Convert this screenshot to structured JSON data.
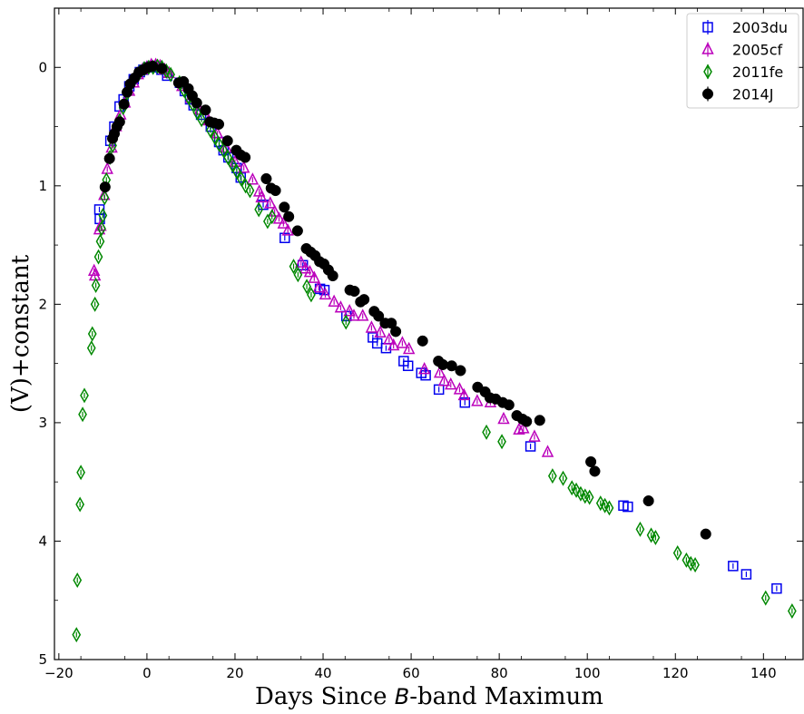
{
  "chart_data": {
    "type": "scatter",
    "xlabel_pre": "Days Since ",
    "xlabel_em": "B",
    "xlabel_post": "-band Maximum",
    "ylabel": "(V)+constant",
    "xlim": [
      -21,
      149
    ],
    "ylim": [
      5,
      -0.5
    ],
    "y_inverted": true,
    "x_ticks": [
      -20,
      0,
      20,
      40,
      60,
      80,
      100,
      120,
      140
    ],
    "x_tick_labels": [
      "−20",
      "0",
      "20",
      "40",
      "60",
      "80",
      "100",
      "120",
      "140"
    ],
    "y_ticks": [
      0,
      1,
      2,
      3,
      4,
      5
    ],
    "y_tick_labels": [
      "0",
      "1",
      "2",
      "3",
      "4",
      "5"
    ],
    "grid": false,
    "legend_position": "top-right",
    "series": [
      {
        "name": "2003du",
        "marker": "square",
        "color": "#0000ee",
        "points": [
          [
            -10.8,
            1.2
          ],
          [
            -10.7,
            1.28
          ],
          [
            -8.3,
            0.62
          ],
          [
            -7.4,
            0.5
          ],
          [
            -6.2,
            0.33
          ],
          [
            -5.3,
            0.27
          ],
          [
            -4.0,
            0.16
          ],
          [
            -3.0,
            0.1
          ],
          [
            -1.6,
            0.04
          ],
          [
            -0.8,
            0.02
          ],
          [
            0.3,
            0.0
          ],
          [
            1.2,
            -0.01
          ],
          [
            2.4,
            0.0
          ],
          [
            3.3,
            0.02
          ],
          [
            4.6,
            0.07
          ],
          [
            7.5,
            0.13
          ],
          [
            8.6,
            0.2
          ],
          [
            9.8,
            0.27
          ],
          [
            10.6,
            0.32
          ],
          [
            12.3,
            0.4
          ],
          [
            14.5,
            0.5
          ],
          [
            16.4,
            0.63
          ],
          [
            17.4,
            0.7
          ],
          [
            18.5,
            0.76
          ],
          [
            20.4,
            0.85
          ],
          [
            21.3,
            0.93
          ],
          [
            26.4,
            1.16
          ],
          [
            31.3,
            1.44
          ],
          [
            35.4,
            1.67
          ],
          [
            39.3,
            1.87
          ],
          [
            40.3,
            1.88
          ],
          [
            45.3,
            2.1
          ],
          [
            51.3,
            2.28
          ],
          [
            52.3,
            2.33
          ],
          [
            54.3,
            2.37
          ],
          [
            58.3,
            2.48
          ],
          [
            59.3,
            2.52
          ],
          [
            62.3,
            2.58
          ],
          [
            63.3,
            2.6
          ],
          [
            66.3,
            2.72
          ],
          [
            72.2,
            2.83
          ],
          [
            87.1,
            3.2
          ],
          [
            108.2,
            3.7
          ],
          [
            109.2,
            3.71
          ],
          [
            133.1,
            4.21
          ],
          [
            136.1,
            4.28
          ],
          [
            143.0,
            4.4
          ]
        ],
        "error": [
          [
            39.3,
            0.1
          ],
          [
            89.0,
            0.08
          ]
        ]
      },
      {
        "name": "2005cf",
        "marker": "triangle",
        "color": "#bb00bb",
        "points": [
          [
            -12.0,
            1.72
          ],
          [
            -11.8,
            1.76
          ],
          [
            -10.8,
            1.37
          ],
          [
            -10.5,
            1.34
          ],
          [
            -9.7,
            1.08
          ],
          [
            -9.0,
            0.86
          ],
          [
            -8.0,
            0.68
          ],
          [
            -7.0,
            0.5
          ],
          [
            -6.0,
            0.4
          ],
          [
            -5.0,
            0.3
          ],
          [
            -4.0,
            0.2
          ],
          [
            -3.0,
            0.13
          ],
          [
            -2.0,
            0.06
          ],
          [
            -1.0,
            0.02
          ],
          [
            0.0,
            0.0
          ],
          [
            1.0,
            -0.02
          ],
          [
            2.0,
            -0.02
          ],
          [
            3.0,
            -0.01
          ],
          [
            4.0,
            0.02
          ],
          [
            5.0,
            0.05
          ],
          [
            8.0,
            0.16
          ],
          [
            10.0,
            0.26
          ],
          [
            12.0,
            0.36
          ],
          [
            14.0,
            0.45
          ],
          [
            16.0,
            0.56
          ],
          [
            18.0,
            0.68
          ],
          [
            20.0,
            0.8
          ],
          [
            22.0,
            0.85
          ],
          [
            24.0,
            0.95
          ],
          [
            25.5,
            1.05
          ],
          [
            26.0,
            1.1
          ],
          [
            28.0,
            1.15
          ],
          [
            29.0,
            1.22
          ],
          [
            30.0,
            1.28
          ],
          [
            31.0,
            1.32
          ],
          [
            32.0,
            1.38
          ],
          [
            35.0,
            1.65
          ],
          [
            36.0,
            1.7
          ],
          [
            37.0,
            1.73
          ],
          [
            38.0,
            1.78
          ],
          [
            39.0,
            1.86
          ],
          [
            40.5,
            1.92
          ],
          [
            42.5,
            1.98
          ],
          [
            44.0,
            2.03
          ],
          [
            46.0,
            2.06
          ],
          [
            47.0,
            2.1
          ],
          [
            49.0,
            2.1
          ],
          [
            51.0,
            2.2
          ],
          [
            53.0,
            2.24
          ],
          [
            55.0,
            2.3
          ],
          [
            56.0,
            2.35
          ],
          [
            58.0,
            2.33
          ],
          [
            59.5,
            2.38
          ],
          [
            63.0,
            2.55
          ],
          [
            66.5,
            2.58
          ],
          [
            67.5,
            2.65
          ],
          [
            69.0,
            2.68
          ],
          [
            71.0,
            2.72
          ],
          [
            72.0,
            2.77
          ],
          [
            75.0,
            2.82
          ],
          [
            78.0,
            2.83
          ],
          [
            81.0,
            2.97
          ],
          [
            84.5,
            3.06
          ],
          [
            85.5,
            3.05
          ],
          [
            88.0,
            3.12
          ],
          [
            91.0,
            3.25
          ]
        ]
      },
      {
        "name": "2011fe",
        "marker": "diamond",
        "color": "#008800",
        "points": [
          [
            -16.0,
            4.79
          ],
          [
            -15.8,
            4.33
          ],
          [
            -15.2,
            3.69
          ],
          [
            -15.0,
            3.42
          ],
          [
            -14.6,
            2.93
          ],
          [
            -14.2,
            2.77
          ],
          [
            -12.6,
            2.37
          ],
          [
            -12.4,
            2.25
          ],
          [
            -11.8,
            2.0
          ],
          [
            -11.6,
            1.84
          ],
          [
            -11.0,
            1.6
          ],
          [
            -10.6,
            1.47
          ],
          [
            -10.3,
            1.36
          ],
          [
            -10.0,
            1.25
          ],
          [
            -9.6,
            1.1
          ],
          [
            -9.2,
            0.95
          ],
          [
            -8.4,
            0.76
          ],
          [
            -7.8,
            0.66
          ],
          [
            -7.2,
            0.56
          ],
          [
            -6.2,
            0.45
          ],
          [
            -5.4,
            0.34
          ],
          [
            -4.5,
            0.22
          ],
          [
            -3.6,
            0.14
          ],
          [
            -2.6,
            0.08
          ],
          [
            -1.6,
            0.04
          ],
          [
            -0.6,
            0.01
          ],
          [
            0.4,
            0.0
          ],
          [
            1.4,
            0.0
          ],
          [
            2.4,
            -0.01
          ],
          [
            3.4,
            0.0
          ],
          [
            4.4,
            0.03
          ],
          [
            5.4,
            0.06
          ],
          [
            7.4,
            0.13
          ],
          [
            8.4,
            0.19
          ],
          [
            9.4,
            0.25
          ],
          [
            10.4,
            0.31
          ],
          [
            11.4,
            0.38
          ],
          [
            12.4,
            0.44
          ],
          [
            14.4,
            0.53
          ],
          [
            15.4,
            0.59
          ],
          [
            16.4,
            0.65
          ],
          [
            17.4,
            0.7
          ],
          [
            18.4,
            0.76
          ],
          [
            19.4,
            0.82
          ],
          [
            20.4,
            0.88
          ],
          [
            21.4,
            0.94
          ],
          [
            22.4,
            1.0
          ],
          [
            23.4,
            1.04
          ],
          [
            25.4,
            1.2
          ],
          [
            27.4,
            1.3
          ],
          [
            28.4,
            1.26
          ],
          [
            33.3,
            1.68
          ],
          [
            34.3,
            1.75
          ],
          [
            36.3,
            1.85
          ],
          [
            37.3,
            1.92
          ],
          [
            45.2,
            2.15
          ],
          [
            77.1,
            3.08
          ],
          [
            80.6,
            3.16
          ],
          [
            92.1,
            3.45
          ],
          [
            94.5,
            3.47
          ],
          [
            96.5,
            3.55
          ],
          [
            97.5,
            3.57
          ],
          [
            98.5,
            3.6
          ],
          [
            99.5,
            3.62
          ],
          [
            100.5,
            3.63
          ],
          [
            103.0,
            3.68
          ],
          [
            104.0,
            3.7
          ],
          [
            105.0,
            3.72
          ],
          [
            112.0,
            3.9
          ],
          [
            114.5,
            3.95
          ],
          [
            115.5,
            3.97
          ],
          [
            120.5,
            4.1
          ],
          [
            122.5,
            4.16
          ],
          [
            123.5,
            4.19
          ],
          [
            124.5,
            4.2
          ],
          [
            140.5,
            4.48
          ],
          [
            146.5,
            4.59
          ]
        ]
      },
      {
        "name": "2014J",
        "marker": "circle",
        "color": "#000000",
        "points": [
          [
            -9.5,
            1.01
          ],
          [
            -8.5,
            0.77
          ],
          [
            -7.8,
            0.6
          ],
          [
            -7.4,
            0.56
          ],
          [
            -6.8,
            0.5
          ],
          [
            -6.2,
            0.46
          ],
          [
            -5.2,
            0.31
          ],
          [
            -4.5,
            0.21
          ],
          [
            -3.8,
            0.14
          ],
          [
            -2.8,
            0.09
          ],
          [
            -1.8,
            0.04
          ],
          [
            -0.8,
            0.02
          ],
          [
            0.2,
            0.0
          ],
          [
            1.3,
            -0.01
          ],
          [
            3.4,
            0.01
          ],
          [
            7.2,
            0.13
          ],
          [
            8.3,
            0.12
          ],
          [
            9.4,
            0.18
          ],
          [
            10.3,
            0.24
          ],
          [
            11.3,
            0.3
          ],
          [
            13.3,
            0.36
          ],
          [
            14.3,
            0.46
          ],
          [
            15.3,
            0.47
          ],
          [
            16.3,
            0.48
          ],
          [
            18.3,
            0.62
          ],
          [
            20.3,
            0.7
          ],
          [
            21.3,
            0.74
          ],
          [
            22.3,
            0.76
          ],
          [
            27.1,
            0.94
          ],
          [
            28.2,
            1.02
          ],
          [
            29.2,
            1.04
          ],
          [
            31.2,
            1.18
          ],
          [
            32.2,
            1.26
          ],
          [
            34.2,
            1.38
          ],
          [
            36.2,
            1.53
          ],
          [
            37.2,
            1.56
          ],
          [
            38.2,
            1.59
          ],
          [
            39.2,
            1.64
          ],
          [
            40.2,
            1.66
          ],
          [
            41.2,
            1.71
          ],
          [
            42.2,
            1.76
          ],
          [
            46.1,
            1.88
          ],
          [
            47.1,
            1.89
          ],
          [
            48.5,
            1.98
          ],
          [
            49.3,
            1.96
          ],
          [
            51.6,
            2.06
          ],
          [
            52.6,
            2.1
          ],
          [
            54.1,
            2.16
          ],
          [
            55.5,
            2.16
          ],
          [
            56.5,
            2.23
          ],
          [
            62.6,
            2.31
          ],
          [
            66.2,
            2.48
          ],
          [
            67.2,
            2.51
          ],
          [
            69.2,
            2.52
          ],
          [
            71.2,
            2.56
          ],
          [
            75.1,
            2.7
          ],
          [
            76.8,
            2.74
          ],
          [
            77.9,
            2.79
          ],
          [
            79.2,
            2.8
          ],
          [
            80.8,
            2.83
          ],
          [
            82.2,
            2.85
          ],
          [
            84.0,
            2.94
          ],
          [
            85.3,
            2.97
          ],
          [
            86.2,
            2.99
          ],
          [
            89.2,
            2.98
          ],
          [
            100.8,
            3.33
          ],
          [
            101.7,
            3.41
          ],
          [
            113.9,
            3.66
          ],
          [
            126.9,
            3.94
          ]
        ]
      }
    ]
  }
}
